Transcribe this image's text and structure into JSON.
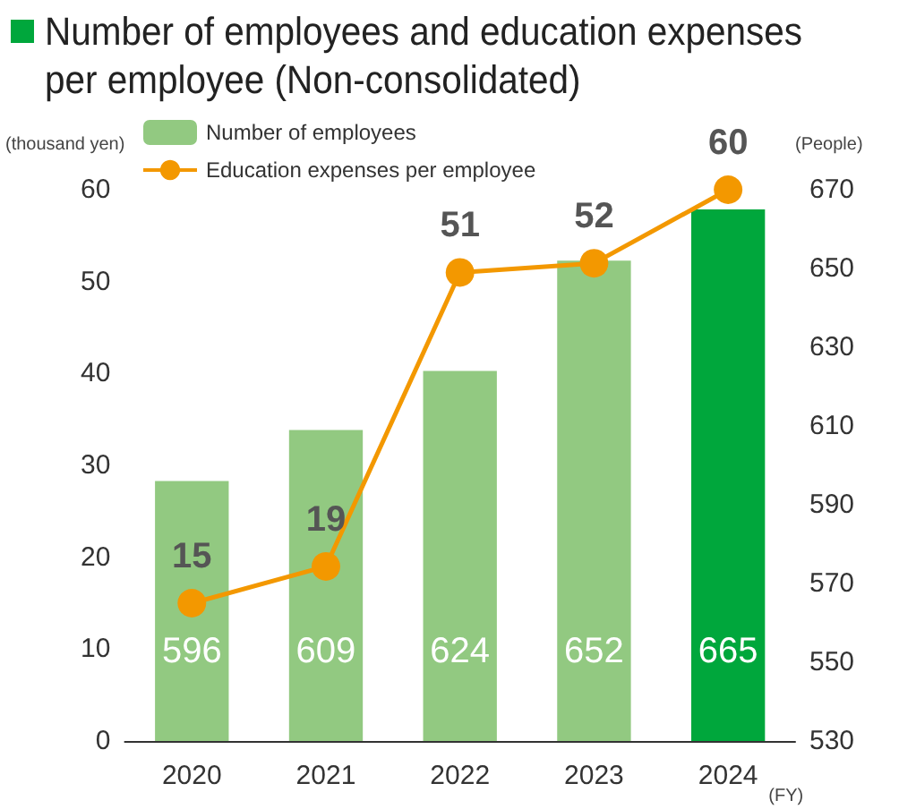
{
  "chart_data": {
    "type": "bar",
    "title": "Number of employees and education expenses per employee (Non-consolidated)",
    "categories": [
      "2020",
      "2021",
      "2022",
      "2023",
      "2024"
    ],
    "xlabel": "(FY)",
    "ylabel": "(thousand yen)",
    "y2label": "(People)",
    "series": [
      {
        "name": "Number of employees",
        "axis": "y2",
        "color": "#92c981",
        "colors": [
          "#92c981",
          "#92c981",
          "#92c981",
          "#92c981",
          "#00a73c"
        ],
        "values": [
          596,
          609,
          624,
          652,
          665
        ]
      },
      {
        "name": "Education expenses per employee",
        "type": "line",
        "color": "#f39800",
        "marker": "circle",
        "values": [
          15,
          19,
          51,
          52,
          60
        ]
      }
    ],
    "ylim": [
      0,
      60
    ],
    "yticks": [
      0,
      10,
      20,
      30,
      40,
      50,
      60
    ],
    "y2lim": [
      530,
      670
    ],
    "y2ticks": [
      530,
      550,
      570,
      590,
      610,
      630,
      650,
      670
    ],
    "data_labels": true,
    "grid": false,
    "legend": "top left"
  }
}
